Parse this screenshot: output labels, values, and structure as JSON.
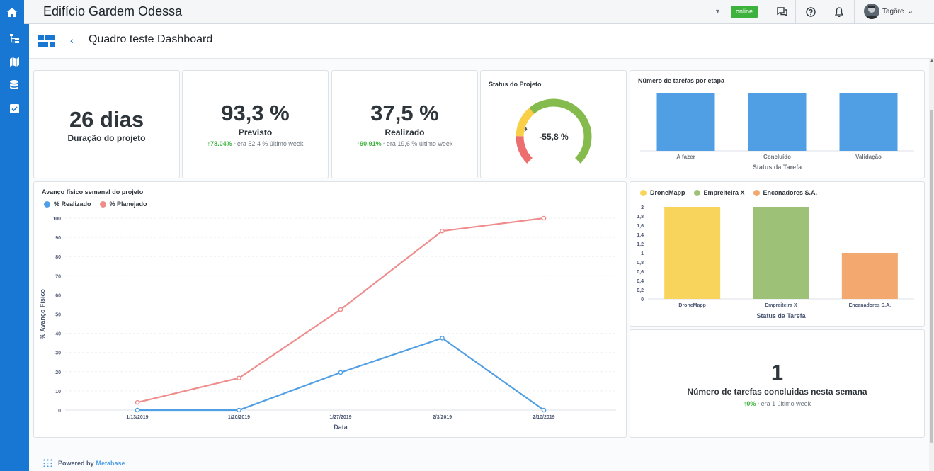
{
  "topbar": {
    "title": "Edifício Gardem Odessa",
    "status_badge": "online",
    "user_name": "Tagôre",
    "icons": [
      "home-icon",
      "chat-icon",
      "help-icon",
      "bell-icon",
      "chevron-down-icon"
    ]
  },
  "sidebar": {
    "items": [
      {
        "icon": "hierarchy-icon"
      },
      {
        "icon": "map-icon"
      },
      {
        "icon": "database-icon"
      },
      {
        "icon": "checkbox-icon"
      }
    ]
  },
  "header": {
    "back_label": "‹",
    "title": "Quadro teste Dashboard"
  },
  "kpis": [
    {
      "value": "26 dias",
      "label": "Duração do projeto"
    },
    {
      "value": "93,3 %",
      "label": "Previsto",
      "trend_pct": "78.04%",
      "trend_text": "era 52,4 %  último week"
    },
    {
      "value": "37,5 %",
      "label": "Realizado",
      "trend_pct": "90.91%",
      "trend_text": "era 19,6 %  último week"
    }
  ],
  "gauge": {
    "title": "Status do Projeto",
    "value_text": "-55,8 %",
    "segments": [
      {
        "color": "#ed6e6e",
        "from": -100,
        "to": -66
      },
      {
        "color": "#f9cf48",
        "from": -66,
        "to": -30
      },
      {
        "color": "#84bb4c",
        "from": -30,
        "to": 100
      }
    ],
    "value": -55.8
  },
  "tasks_chart": {
    "title": "Número de tarefas por etapa",
    "xlabel": "Status da Tarefa",
    "color": "#509ee3"
  },
  "line_chart": {
    "title": "Avanço físico semanal do projeto",
    "legend": [
      "% Realizado",
      "% Planejado"
    ],
    "ylabel": "% Avanço Físico",
    "xlabel": "Data",
    "colors": [
      "#509ee3",
      "#ef8c8c"
    ]
  },
  "company_chart": {
    "legend": [
      "DroneMapp",
      "Empreiteira X",
      "Encanadores S.A."
    ],
    "xlabel": "Status da Tarefa",
    "colors": [
      "#f9d45c",
      "#9cc177",
      "#f2a86f"
    ]
  },
  "weekly": {
    "value": "1",
    "label": "Número de tarefas concluidas nesta semana",
    "trend_pct": "0%",
    "trend_text": "era 1  último week"
  },
  "footer": {
    "prefix": "Powered by",
    "brand": "Metabase"
  },
  "chart_data": [
    {
      "type": "bar",
      "title": "Número de tarefas por etapa",
      "categories": [
        "A fazer",
        "Concluído",
        "Validação"
      ],
      "values": [
        1,
        1,
        1
      ],
      "xlabel": "Status da Tarefa",
      "ylabel": "",
      "ylim": [
        0,
        1
      ]
    },
    {
      "type": "line",
      "title": "Avanço físico semanal do projeto",
      "x": [
        "1/13/2019",
        "1/20/2019",
        "1/27/2019",
        "2/3/2019",
        "2/10/2019"
      ],
      "series": [
        {
          "name": "% Realizado",
          "values": [
            0,
            0,
            19.6,
            37.5,
            0
          ]
        },
        {
          "name": "% Planejado",
          "values": [
            4,
            16.7,
            52.4,
            93.3,
            100
          ]
        }
      ],
      "xlabel": "Data",
      "ylabel": "% Avanço Físico",
      "ylim": [
        0,
        100
      ],
      "yticks": [
        0,
        10,
        20,
        30,
        40,
        50,
        60,
        70,
        80,
        90,
        100
      ],
      "legend": "top-left",
      "grid": true
    },
    {
      "type": "bar",
      "title": "",
      "categories": [
        "DroneMapp",
        "Empreiteira X",
        "Encanadores S.A."
      ],
      "values": [
        2,
        2,
        1
      ],
      "xlabel": "Status da Tarefa",
      "ylabel": "",
      "ylim": [
        0,
        2
      ],
      "yticks": [
        "0",
        "0,2",
        "0,4",
        "0,6",
        "0,8",
        "1",
        "1,2",
        "1,4",
        "1,6",
        "1,8",
        "2"
      ],
      "legend": "top-left"
    }
  ]
}
